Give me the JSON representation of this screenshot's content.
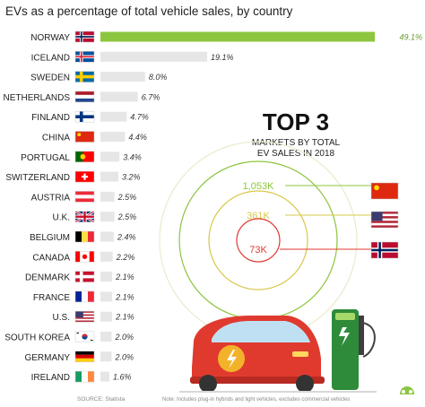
{
  "chart_data": {
    "type": "bar",
    "orientation": "horizontal",
    "title": "EVs as a percentage of total vehicle sales, by country",
    "categories": [
      "NORWAY",
      "ICELAND",
      "SWEDEN",
      "NETHERLANDS",
      "FINLAND",
      "CHINA",
      "PORTUGAL",
      "SWITZERLAND",
      "AUSTRIA",
      "U.K.",
      "BELGIUM",
      "CANADA",
      "DENMARK",
      "FRANCE",
      "U.S.",
      "SOUTH KOREA",
      "GERMANY",
      "IRELAND"
    ],
    "values": [
      49.1,
      19.1,
      8.0,
      6.7,
      4.7,
      4.4,
      3.4,
      3.2,
      2.5,
      2.5,
      2.4,
      2.2,
      2.1,
      2.1,
      2.1,
      2.0,
      2.0,
      1.6
    ],
    "value_labels": [
      "49.1%",
      "19.1%",
      "8.0%",
      "6.7%",
      "4.7%",
      "4.4%",
      "3.4%",
      "3.2%",
      "2.5%",
      "2.5%",
      "2.4%",
      "2.2%",
      "2.1%",
      "2.1%",
      "2.1%",
      "2.0%",
      "2.0%",
      "1.6%"
    ],
    "flags": [
      "norway-flag",
      "iceland-flag",
      "sweden-flag",
      "netherlands-flag",
      "finland-flag",
      "china-flag",
      "portugal-flag",
      "switzerland-flag",
      "austria-flag",
      "uk-flag",
      "belgium-flag",
      "canada-flag",
      "denmark-flag",
      "france-flag",
      "us-flag",
      "south-korea-flag",
      "germany-flag",
      "ireland-flag"
    ],
    "colors": {
      "highlight": "#8cc63f",
      "bar": "#e6e6e6",
      "accent_red": "#e03a2f",
      "ring": "#e8eccb"
    },
    "top3": {
      "title": "TOP 3",
      "subtitle_line1": "MARKETS BY TOTAL",
      "subtitle_line2": "EV SALES IN 2018",
      "items": [
        {
          "label": "1,053K",
          "flag": "china-flag",
          "value": 1053,
          "color": "#8cc63f"
        },
        {
          "label": "361K",
          "flag": "us-flag",
          "value": 361,
          "color": "#d7c84a"
        },
        {
          "label": "73K",
          "flag": "norway-flag",
          "value": 73,
          "color": "#e03a2f"
        }
      ]
    }
  },
  "footer": {
    "source": "SOURCE: Statista",
    "note": "Note: Includes plug-in hybrids and light vehicles, excludes commercial vehicles"
  }
}
